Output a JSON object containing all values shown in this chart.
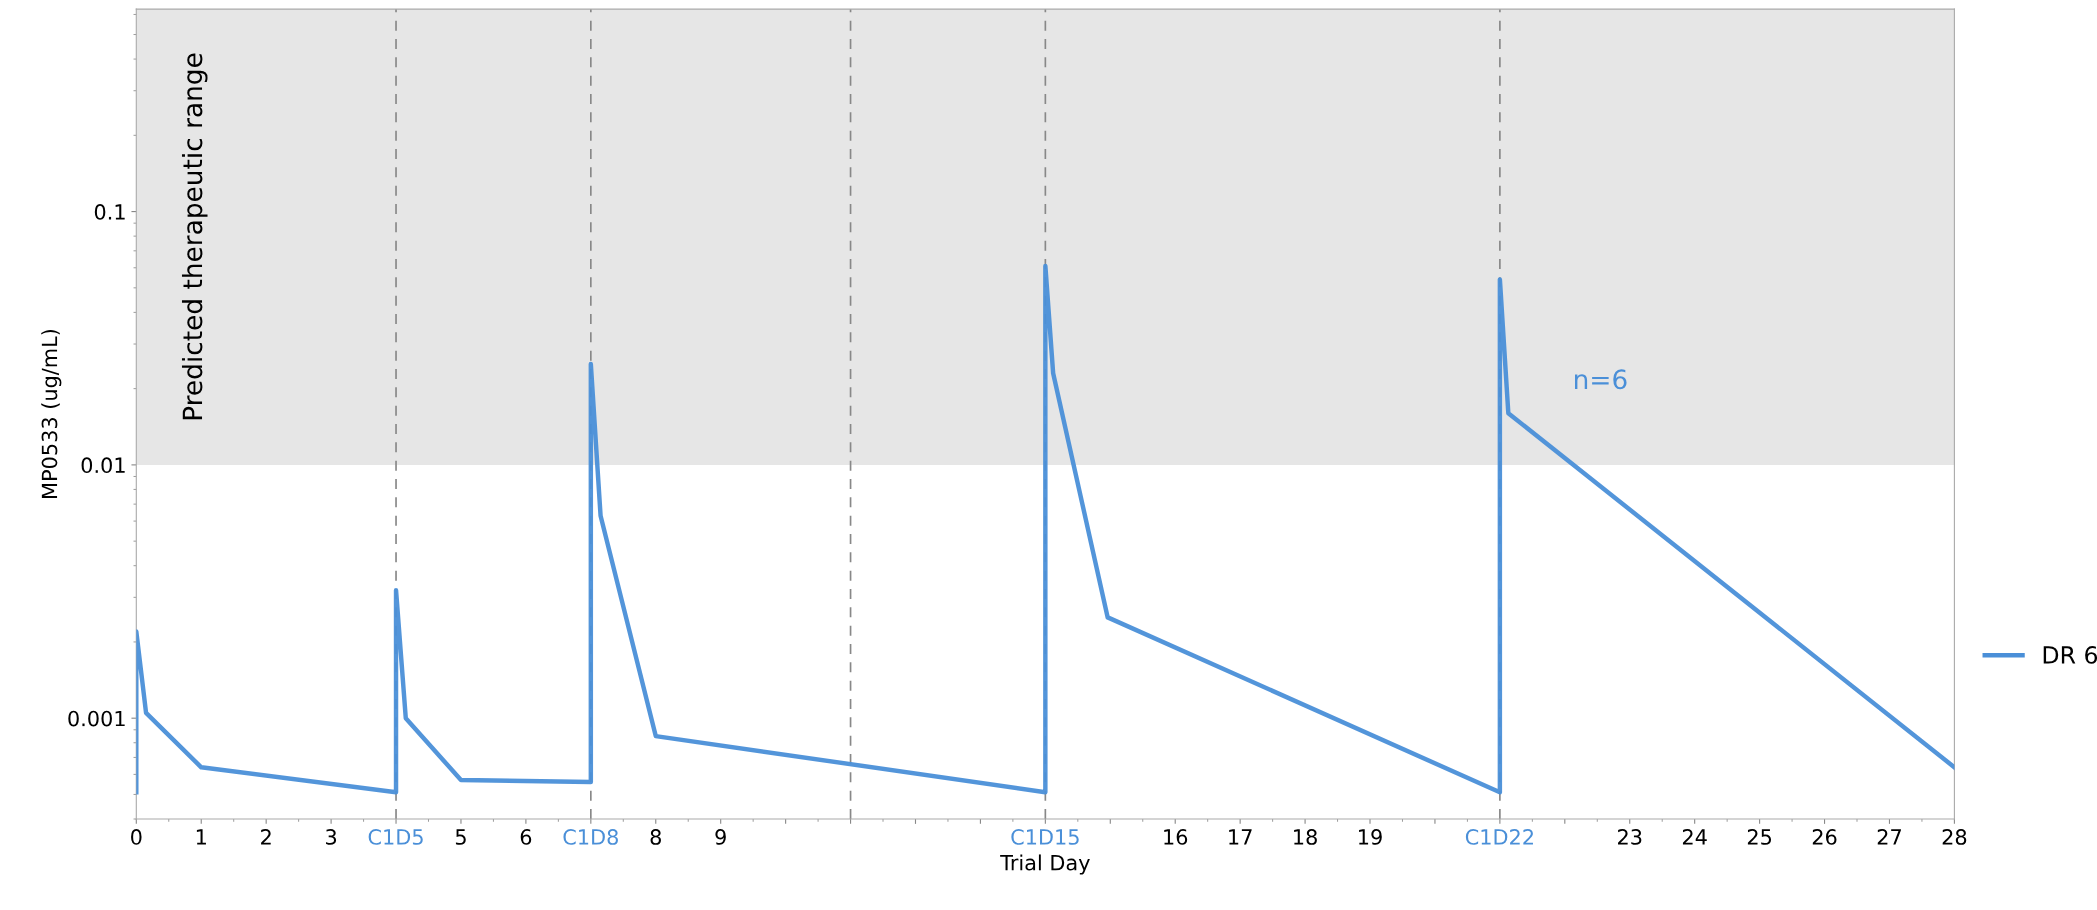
{
  "chart_data": {
    "type": "line",
    "xlabel": "Trial Day",
    "ylabel": "MP0533 (ug/mL)",
    "series": [
      {
        "name": "DR 6",
        "color": "#4a8fd8",
        "x": [
          0,
          0,
          0.15,
          1,
          4,
          4,
          4.15,
          5,
          7,
          7,
          7.15,
          8,
          14,
          14,
          14.12,
          14.96,
          21,
          21,
          21.13,
          28
        ],
        "values": [
          0.00051,
          0.0022,
          0.00105,
          0.00064,
          0.00051,
          0.0032,
          0.001,
          0.00057,
          0.00056,
          0.025,
          0.0063,
          0.00085,
          0.00051,
          0.061,
          0.023,
          0.0025,
          0.00051,
          0.054,
          0.016,
          0.00064
        ]
      }
    ],
    "log": "y",
    "xlim": [
      0,
      28
    ],
    "ylim": [
      0.0004,
      0.63
    ],
    "xticks": [
      0,
      1,
      2,
      3,
      {
        "value": 4,
        "label": "C1D5"
      },
      5,
      6,
      {
        "value": 7,
        "label": "C1D8"
      },
      8,
      9,
      {
        "value": 10,
        "label": null
      },
      {
        "value": 11,
        "label": null
      },
      {
        "value": 12,
        "label": null
      },
      {
        "value": 13,
        "label": null
      },
      {
        "value": 14,
        "label": "C1D15"
      },
      {
        "value": 15,
        "label": null
      },
      16,
      17,
      18,
      19,
      {
        "value": 20,
        "label": null
      },
      {
        "value": 21,
        "label": "C1D22"
      },
      {
        "value": 22,
        "label": null
      },
      23,
      24,
      25,
      26,
      27,
      28
    ],
    "yticks": [
      0.001,
      0.01,
      0.1
    ],
    "bands": [
      {
        "axis": "y",
        "from": 0.01,
        "to": 0.63,
        "label": "Predicted therapeutic range",
        "color": "#e6e6e6"
      }
    ],
    "ref_lines": [
      {
        "axis": "x",
        "value": 4,
        "color": "#888888",
        "line_style": "dashed"
      },
      {
        "axis": "x",
        "value": 7,
        "color": "#888888",
        "line_style": "dashed"
      },
      {
        "axis": "x",
        "value": 11,
        "color": "#888888",
        "line_style": "dashed"
      },
      {
        "axis": "x",
        "value": 14,
        "color": "#888888",
        "line_style": "dashed"
      },
      {
        "axis": "x",
        "value": 21,
        "color": "#888888",
        "line_style": "dashed"
      }
    ],
    "annotations": [
      "n=6"
    ],
    "grid": false,
    "legend": "right",
    "marker": "none",
    "line_style": "solid"
  }
}
